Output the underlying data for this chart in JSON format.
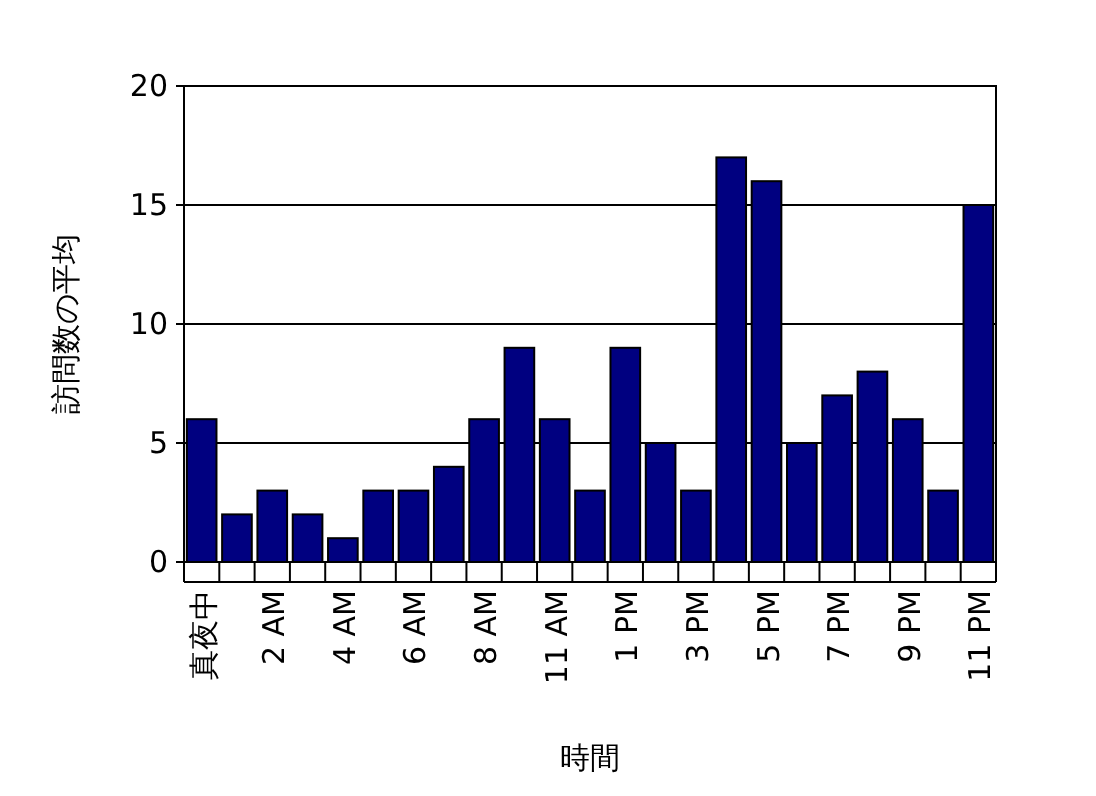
{
  "chart_data": {
    "type": "bar",
    "xlabel": "時間",
    "ylabel": "訪問数の平均",
    "categories": [
      "真夜中",
      null,
      "2 AM",
      null,
      "4 AM",
      null,
      "6 AM",
      null,
      "8 AM",
      null,
      "11 AM",
      null,
      "1 PM",
      null,
      "3 PM",
      null,
      "5 PM",
      null,
      "7 PM",
      null,
      "9 PM",
      null,
      "11 PM"
    ],
    "values": [
      6,
      2,
      3,
      2,
      1,
      3,
      3,
      4,
      6,
      9,
      6,
      3,
      9,
      5,
      3,
      17,
      16,
      5,
      7,
      8,
      6,
      3,
      15
    ],
    "color": "#000080",
    "ylim": [
      0,
      20
    ],
    "yticks": [
      0,
      5,
      10,
      15,
      20
    ],
    "grid": "y"
  }
}
